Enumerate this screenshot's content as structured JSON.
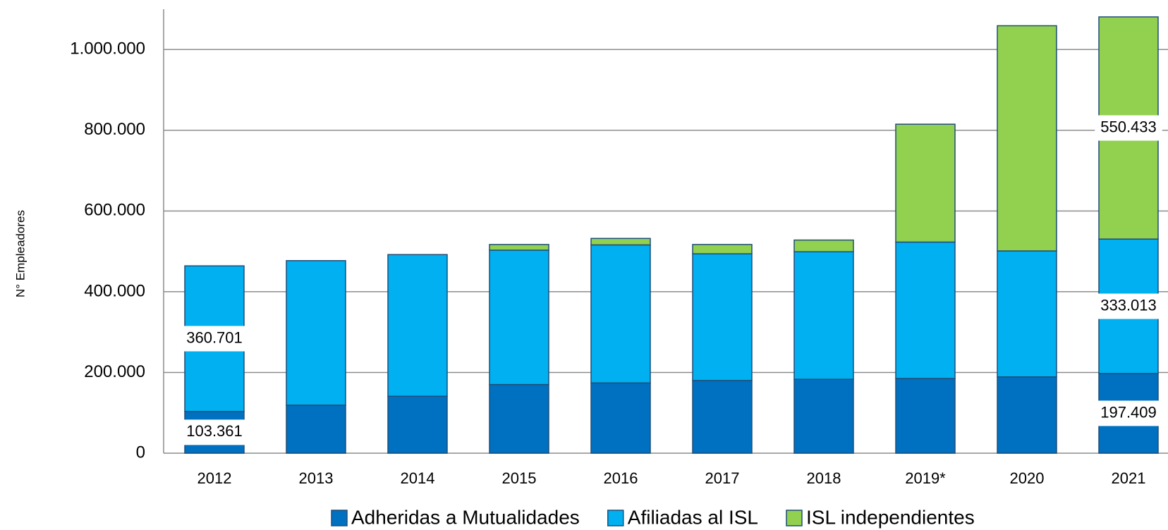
{
  "chart_data": {
    "type": "stacked_bar",
    "y_label": "N° Empleadores",
    "categories": [
      "2012",
      "2013",
      "2014",
      "2015",
      "2016",
      "2017",
      "2018",
      "2019*",
      "2020",
      "2021"
    ],
    "series": [
      {
        "name": "Adheridas a Mutualidades",
        "color": "#0070C0",
        "values": [
          103361,
          119000,
          141000,
          170000,
          174000,
          180000,
          183000,
          185000,
          189000,
          197409
        ],
        "value_labels": [
          "103.361",
          null,
          null,
          null,
          null,
          null,
          null,
          null,
          null,
          "197.409"
        ]
      },
      {
        "name": "Afiliadas al ISL",
        "color": "#00B0F0",
        "values": [
          360701,
          358000,
          351000,
          333000,
          342000,
          314000,
          316000,
          338000,
          312000,
          333013
        ],
        "value_labels": [
          "360.701",
          null,
          null,
          null,
          null,
          null,
          null,
          null,
          null,
          "333.013"
        ]
      },
      {
        "name": "ISL independientes",
        "color": "#92D050",
        "values": [
          0,
          0,
          0,
          14000,
          16000,
          23000,
          29000,
          292000,
          558000,
          550433
        ],
        "value_labels": [
          null,
          null,
          null,
          null,
          null,
          null,
          null,
          null,
          null,
          "550.433"
        ]
      }
    ],
    "ylim": [
      0,
      1100000
    ],
    "yticks": [
      0,
      {
        "value": 200000,
        "label": "200.000"
      },
      {
        "value": 400000,
        "label": "400.000"
      },
      {
        "value": 600000,
        "label": "600.000"
      },
      {
        "value": 800000,
        "label": "800.000"
      },
      {
        "value": 1000000,
        "label": "1.000.000"
      }
    ],
    "grid": true,
    "legend": "bottom"
  }
}
